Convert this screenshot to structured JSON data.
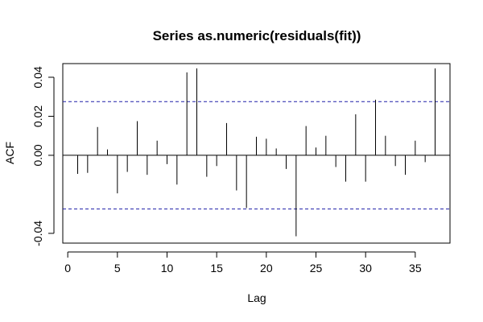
{
  "chart_data": {
    "type": "bar",
    "title": "Series as.numeric(residuals(fit))",
    "xlabel": "Lag",
    "ylabel": "ACF",
    "xlim": [
      -0.5,
      38.5
    ],
    "ylim": [
      -0.045,
      0.047
    ],
    "x_ticks": [
      "0",
      "5",
      "10",
      "15",
      "20",
      "25",
      "30",
      "35"
    ],
    "y_ticks": [
      "-0.04",
      "0.00",
      "0.02",
      "0.04"
    ],
    "confidence_bounds": [
      0.0275,
      -0.0275
    ],
    "lags": [
      1,
      2,
      3,
      4,
      5,
      6,
      7,
      8,
      9,
      10,
      11,
      12,
      13,
      14,
      15,
      16,
      17,
      18,
      19,
      20,
      21,
      22,
      23,
      24,
      25,
      26,
      27,
      28,
      29,
      30,
      31,
      32,
      33,
      34,
      35,
      36,
      37
    ],
    "values": [
      -0.0095,
      -0.009,
      0.0145,
      0.003,
      -0.0195,
      -0.0085,
      0.0175,
      -0.01,
      0.0075,
      -0.0045,
      -0.015,
      0.0425,
      0.0445,
      -0.011,
      -0.0055,
      0.0165,
      -0.018,
      -0.027,
      0.0095,
      0.0085,
      0.0035,
      -0.007,
      -0.0415,
      0.015,
      0.004,
      0.01,
      -0.006,
      -0.0135,
      0.021,
      -0.0135,
      0.0285,
      0.01,
      -0.0055,
      -0.01,
      0.0075,
      -0.0035,
      0.0445
    ],
    "colors": {
      "bounds": "#1f1fa8",
      "bars": "#000000",
      "axes": "#000000"
    }
  }
}
